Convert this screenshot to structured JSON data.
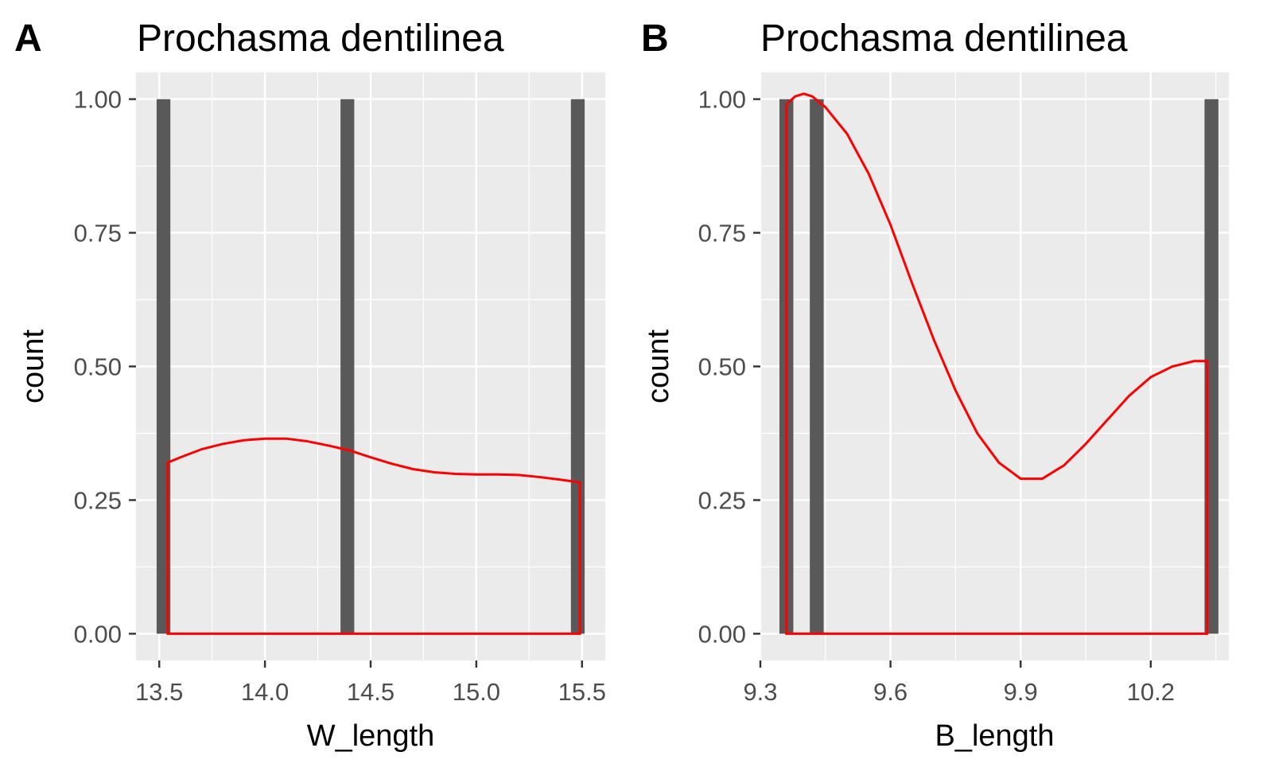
{
  "colors": {
    "panel_bg": "#EBEBEB",
    "grid": "#FFFFFF",
    "bar": "#595959",
    "density": "#FF0000",
    "tick": "#333333"
  },
  "chart_data": [
    {
      "type": "bar",
      "tag": "A",
      "title": "Prochasma dentilinea",
      "xlabel": "W_length",
      "ylabel": "count",
      "xlim": [
        13.39,
        15.61
      ],
      "ylim": [
        -0.05,
        1.05
      ],
      "x_ticks": [
        13.5,
        14.0,
        14.5,
        15.0,
        15.5
      ],
      "x_tick_labels": [
        "13.5",
        "14.0",
        "14.5",
        "15.0",
        "15.5"
      ],
      "y_ticks": [
        0,
        0.25,
        0.5,
        0.75,
        1.0
      ],
      "y_tick_labels": [
        "0.00",
        "0.25",
        "0.50",
        "0.75",
        "1.00"
      ],
      "bars": [
        {
          "x": 13.52,
          "count": 1
        },
        {
          "x": 14.39,
          "count": 1
        },
        {
          "x": 15.48,
          "count": 1
        }
      ],
      "bar_width": 0.065,
      "density": {
        "x": [
          13.54,
          13.6,
          13.7,
          13.8,
          13.9,
          14.0,
          14.1,
          14.2,
          14.3,
          14.4,
          14.5,
          14.6,
          14.7,
          14.8,
          14.9,
          15.0,
          15.1,
          15.2,
          15.3,
          15.4,
          15.49
        ],
        "y": [
          0.32,
          0.33,
          0.345,
          0.355,
          0.362,
          0.365,
          0.365,
          0.36,
          0.352,
          0.343,
          0.33,
          0.318,
          0.308,
          0.302,
          0.299,
          0.298,
          0.298,
          0.297,
          0.293,
          0.288,
          0.283
        ]
      }
    },
    {
      "type": "bar",
      "tag": "B",
      "title": "Prochasma dentilinea",
      "xlabel": "B_length",
      "ylabel": "count",
      "xlim": [
        9.3,
        10.38
      ],
      "ylim": [
        -0.05,
        1.05
      ],
      "x_ticks": [
        9.3,
        9.6,
        9.9,
        10.2
      ],
      "x_tick_labels": [
        "9.3",
        "9.6",
        "9.9",
        "10.2"
      ],
      "y_ticks": [
        0,
        0.25,
        0.5,
        0.75,
        1.0
      ],
      "y_tick_labels": [
        "0.00",
        "0.25",
        "0.50",
        "0.75",
        "1.00"
      ],
      "bars": [
        {
          "x": 9.36,
          "count": 1
        },
        {
          "x": 9.43,
          "count": 1
        },
        {
          "x": 10.34,
          "count": 1
        }
      ],
      "bar_width": 0.032,
      "density": {
        "x": [
          9.36,
          9.38,
          9.4,
          9.42,
          9.45,
          9.5,
          9.55,
          9.6,
          9.65,
          9.7,
          9.75,
          9.8,
          9.85,
          9.9,
          9.95,
          10.0,
          10.05,
          10.1,
          10.15,
          10.2,
          10.25,
          10.3,
          10.33
        ],
        "y": [
          0.99,
          1.005,
          1.01,
          1.005,
          0.985,
          0.935,
          0.86,
          0.765,
          0.655,
          0.55,
          0.455,
          0.375,
          0.32,
          0.29,
          0.29,
          0.315,
          0.355,
          0.4,
          0.445,
          0.48,
          0.5,
          0.51,
          0.51
        ]
      }
    }
  ]
}
